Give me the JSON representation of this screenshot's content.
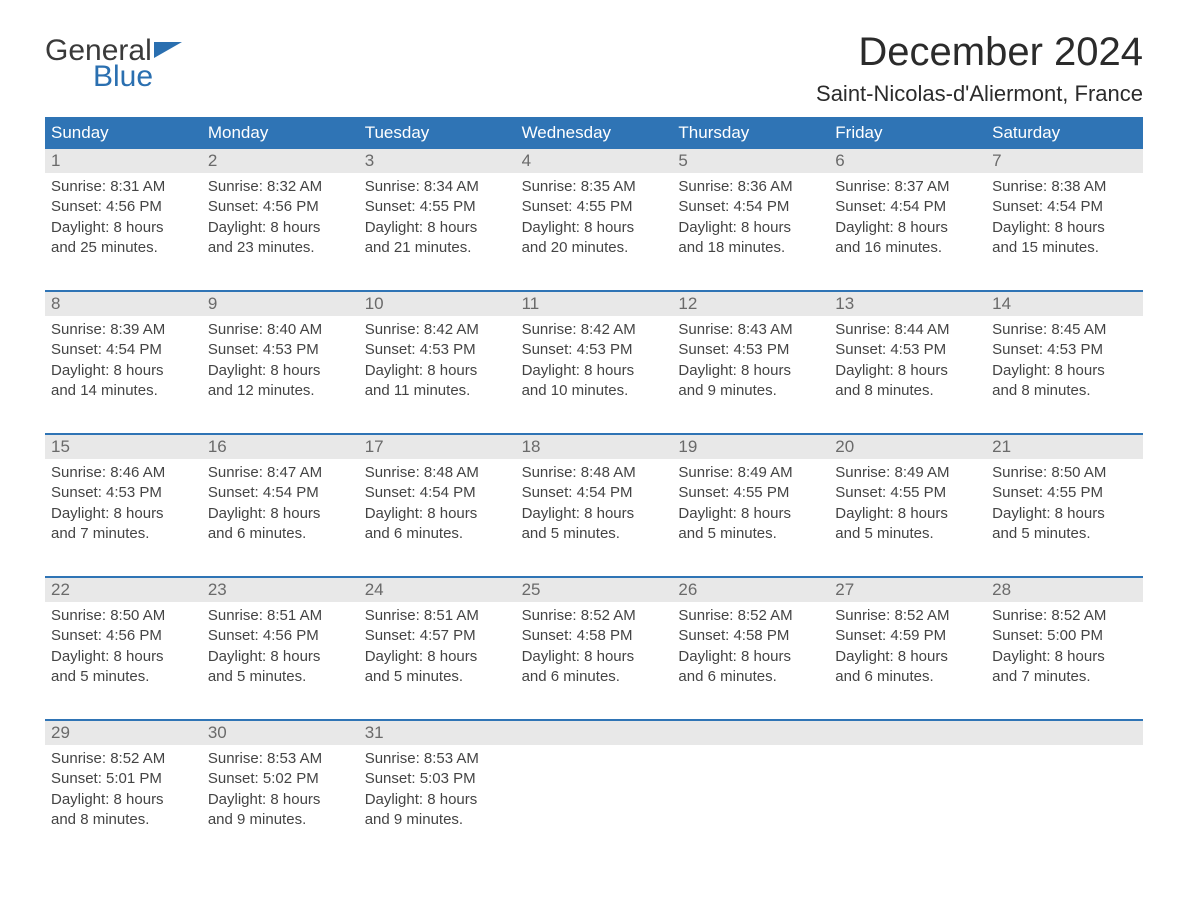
{
  "logo": {
    "top": "General",
    "bottom": "Blue",
    "top_color": "#3a3a3a",
    "bottom_color": "#2a6fb0"
  },
  "title": "December 2024",
  "location": "Saint-Nicolas-d'Aliermont, France",
  "colors": {
    "header_bg": "#2f74b5",
    "header_text": "#ffffff",
    "daynum_bg": "#e8e8e8",
    "daynum_text": "#6a6a6a",
    "week_border": "#2f74b5",
    "body_text": "#444444",
    "page_bg": "#ffffff"
  },
  "layout": {
    "columns": 7,
    "header_fontsize": 17,
    "daynum_fontsize": 17,
    "cell_fontsize": 15,
    "title_fontsize": 40,
    "location_fontsize": 22
  },
  "day_headers": [
    "Sunday",
    "Monday",
    "Tuesday",
    "Wednesday",
    "Thursday",
    "Friday",
    "Saturday"
  ],
  "weeks": [
    [
      {
        "n": "1",
        "sunrise": "Sunrise: 8:31 AM",
        "sunset": "Sunset: 4:56 PM",
        "d1": "Daylight: 8 hours",
        "d2": "and 25 minutes."
      },
      {
        "n": "2",
        "sunrise": "Sunrise: 8:32 AM",
        "sunset": "Sunset: 4:56 PM",
        "d1": "Daylight: 8 hours",
        "d2": "and 23 minutes."
      },
      {
        "n": "3",
        "sunrise": "Sunrise: 8:34 AM",
        "sunset": "Sunset: 4:55 PM",
        "d1": "Daylight: 8 hours",
        "d2": "and 21 minutes."
      },
      {
        "n": "4",
        "sunrise": "Sunrise: 8:35 AM",
        "sunset": "Sunset: 4:55 PM",
        "d1": "Daylight: 8 hours",
        "d2": "and 20 minutes."
      },
      {
        "n": "5",
        "sunrise": "Sunrise: 8:36 AM",
        "sunset": "Sunset: 4:54 PM",
        "d1": "Daylight: 8 hours",
        "d2": "and 18 minutes."
      },
      {
        "n": "6",
        "sunrise": "Sunrise: 8:37 AM",
        "sunset": "Sunset: 4:54 PM",
        "d1": "Daylight: 8 hours",
        "d2": "and 16 minutes."
      },
      {
        "n": "7",
        "sunrise": "Sunrise: 8:38 AM",
        "sunset": "Sunset: 4:54 PM",
        "d1": "Daylight: 8 hours",
        "d2": "and 15 minutes."
      }
    ],
    [
      {
        "n": "8",
        "sunrise": "Sunrise: 8:39 AM",
        "sunset": "Sunset: 4:54 PM",
        "d1": "Daylight: 8 hours",
        "d2": "and 14 minutes."
      },
      {
        "n": "9",
        "sunrise": "Sunrise: 8:40 AM",
        "sunset": "Sunset: 4:53 PM",
        "d1": "Daylight: 8 hours",
        "d2": "and 12 minutes."
      },
      {
        "n": "10",
        "sunrise": "Sunrise: 8:42 AM",
        "sunset": "Sunset: 4:53 PM",
        "d1": "Daylight: 8 hours",
        "d2": "and 11 minutes."
      },
      {
        "n": "11",
        "sunrise": "Sunrise: 8:42 AM",
        "sunset": "Sunset: 4:53 PM",
        "d1": "Daylight: 8 hours",
        "d2": "and 10 minutes."
      },
      {
        "n": "12",
        "sunrise": "Sunrise: 8:43 AM",
        "sunset": "Sunset: 4:53 PM",
        "d1": "Daylight: 8 hours",
        "d2": "and 9 minutes."
      },
      {
        "n": "13",
        "sunrise": "Sunrise: 8:44 AM",
        "sunset": "Sunset: 4:53 PM",
        "d1": "Daylight: 8 hours",
        "d2": "and 8 minutes."
      },
      {
        "n": "14",
        "sunrise": "Sunrise: 8:45 AM",
        "sunset": "Sunset: 4:53 PM",
        "d1": "Daylight: 8 hours",
        "d2": "and 8 minutes."
      }
    ],
    [
      {
        "n": "15",
        "sunrise": "Sunrise: 8:46 AM",
        "sunset": "Sunset: 4:53 PM",
        "d1": "Daylight: 8 hours",
        "d2": "and 7 minutes."
      },
      {
        "n": "16",
        "sunrise": "Sunrise: 8:47 AM",
        "sunset": "Sunset: 4:54 PM",
        "d1": "Daylight: 8 hours",
        "d2": "and 6 minutes."
      },
      {
        "n": "17",
        "sunrise": "Sunrise: 8:48 AM",
        "sunset": "Sunset: 4:54 PM",
        "d1": "Daylight: 8 hours",
        "d2": "and 6 minutes."
      },
      {
        "n": "18",
        "sunrise": "Sunrise: 8:48 AM",
        "sunset": "Sunset: 4:54 PM",
        "d1": "Daylight: 8 hours",
        "d2": "and 5 minutes."
      },
      {
        "n": "19",
        "sunrise": "Sunrise: 8:49 AM",
        "sunset": "Sunset: 4:55 PM",
        "d1": "Daylight: 8 hours",
        "d2": "and 5 minutes."
      },
      {
        "n": "20",
        "sunrise": "Sunrise: 8:49 AM",
        "sunset": "Sunset: 4:55 PM",
        "d1": "Daylight: 8 hours",
        "d2": "and 5 minutes."
      },
      {
        "n": "21",
        "sunrise": "Sunrise: 8:50 AM",
        "sunset": "Sunset: 4:55 PM",
        "d1": "Daylight: 8 hours",
        "d2": "and 5 minutes."
      }
    ],
    [
      {
        "n": "22",
        "sunrise": "Sunrise: 8:50 AM",
        "sunset": "Sunset: 4:56 PM",
        "d1": "Daylight: 8 hours",
        "d2": "and 5 minutes."
      },
      {
        "n": "23",
        "sunrise": "Sunrise: 8:51 AM",
        "sunset": "Sunset: 4:56 PM",
        "d1": "Daylight: 8 hours",
        "d2": "and 5 minutes."
      },
      {
        "n": "24",
        "sunrise": "Sunrise: 8:51 AM",
        "sunset": "Sunset: 4:57 PM",
        "d1": "Daylight: 8 hours",
        "d2": "and 5 minutes."
      },
      {
        "n": "25",
        "sunrise": "Sunrise: 8:52 AM",
        "sunset": "Sunset: 4:58 PM",
        "d1": "Daylight: 8 hours",
        "d2": "and 6 minutes."
      },
      {
        "n": "26",
        "sunrise": "Sunrise: 8:52 AM",
        "sunset": "Sunset: 4:58 PM",
        "d1": "Daylight: 8 hours",
        "d2": "and 6 minutes."
      },
      {
        "n": "27",
        "sunrise": "Sunrise: 8:52 AM",
        "sunset": "Sunset: 4:59 PM",
        "d1": "Daylight: 8 hours",
        "d2": "and 6 minutes."
      },
      {
        "n": "28",
        "sunrise": "Sunrise: 8:52 AM",
        "sunset": "Sunset: 5:00 PM",
        "d1": "Daylight: 8 hours",
        "d2": "and 7 minutes."
      }
    ],
    [
      {
        "n": "29",
        "sunrise": "Sunrise: 8:52 AM",
        "sunset": "Sunset: 5:01 PM",
        "d1": "Daylight: 8 hours",
        "d2": "and 8 minutes."
      },
      {
        "n": "30",
        "sunrise": "Sunrise: 8:53 AM",
        "sunset": "Sunset: 5:02 PM",
        "d1": "Daylight: 8 hours",
        "d2": "and 9 minutes."
      },
      {
        "n": "31",
        "sunrise": "Sunrise: 8:53 AM",
        "sunset": "Sunset: 5:03 PM",
        "d1": "Daylight: 8 hours",
        "d2": "and 9 minutes."
      },
      null,
      null,
      null,
      null
    ]
  ]
}
